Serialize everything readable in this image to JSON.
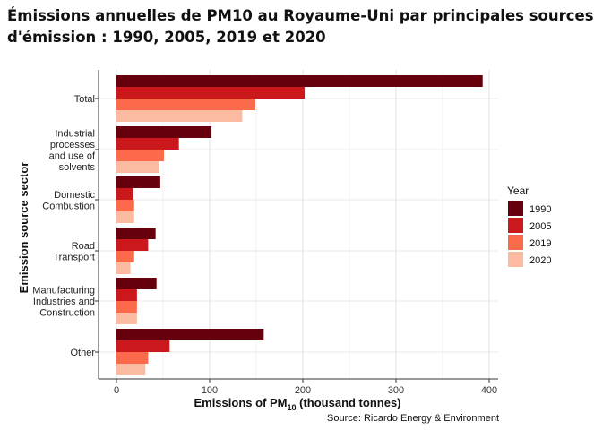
{
  "title_lines": [
    "Émissions annuelles de PM10 au Royaume-Uni par principales sources",
    "d'émission : 1990, 2005, 2019 et 2020"
  ],
  "chart_data": {
    "type": "bar",
    "orientation": "horizontal",
    "categories": [
      [
        "Total"
      ],
      [
        "Industrial",
        "processes",
        "and use of",
        "solvents"
      ],
      [
        "Domestic",
        "Combustion"
      ],
      [
        "Road",
        "Transport"
      ],
      [
        "Manufacturing",
        "Industries and",
        "Construction"
      ],
      [
        "Other"
      ]
    ],
    "series": [
      {
        "name": "1990",
        "color": "#67000d",
        "values": [
          393,
          102,
          47,
          42,
          43,
          158
        ]
      },
      {
        "name": "2005",
        "color": "#cb181d",
        "values": [
          202,
          67,
          18,
          34,
          22,
          57
        ]
      },
      {
        "name": "2019",
        "color": "#fb6a4a",
        "values": [
          149,
          51,
          19,
          19,
          22,
          34
        ]
      },
      {
        "name": "2020",
        "color": "#fcbba1",
        "values": [
          135,
          46,
          19,
          15,
          22,
          31
        ]
      }
    ],
    "xlabel_main": "Emissions of PM",
    "xlabel_sub": "10",
    "xlabel_tail": " (thousand tonnes)",
    "ylabel": "Emission source sector",
    "xlim": [
      0,
      410
    ],
    "xticks": [
      0,
      100,
      200,
      300,
      400
    ],
    "legend_title": "Year",
    "legend_position": "right",
    "grid": true,
    "source": "Source: Ricardo Energy & Environment"
  }
}
